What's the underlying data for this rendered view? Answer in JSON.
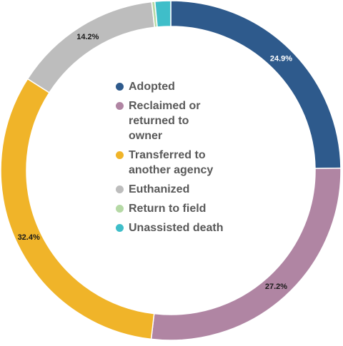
{
  "chart_data": {
    "type": "pie",
    "donut": true,
    "categories": [
      "Adopted",
      "Reclaimed or\nreturned to\nowner",
      "Transferred to\nanother agency",
      "Euthanized",
      "Return to field",
      "Unassisted death"
    ],
    "values": [
      24.9,
      27.2,
      32.4,
      14.2,
      0.3,
      1.5
    ],
    "labels": [
      "24.9%",
      "27.2%",
      "32.4%",
      "14.2%",
      "",
      ""
    ],
    "colors": [
      "#2e5a8c",
      "#b085a3",
      "#f0b429",
      "#bdbdbd",
      "#b5d9a5",
      "#3fbec9"
    ],
    "label_colors": [
      "#ffffff",
      "#1a1a1a",
      "#1a1a1a",
      "#1a1a1a",
      "#1a1a1a",
      "#1a1a1a"
    ],
    "legend_position": "center",
    "title": ""
  }
}
